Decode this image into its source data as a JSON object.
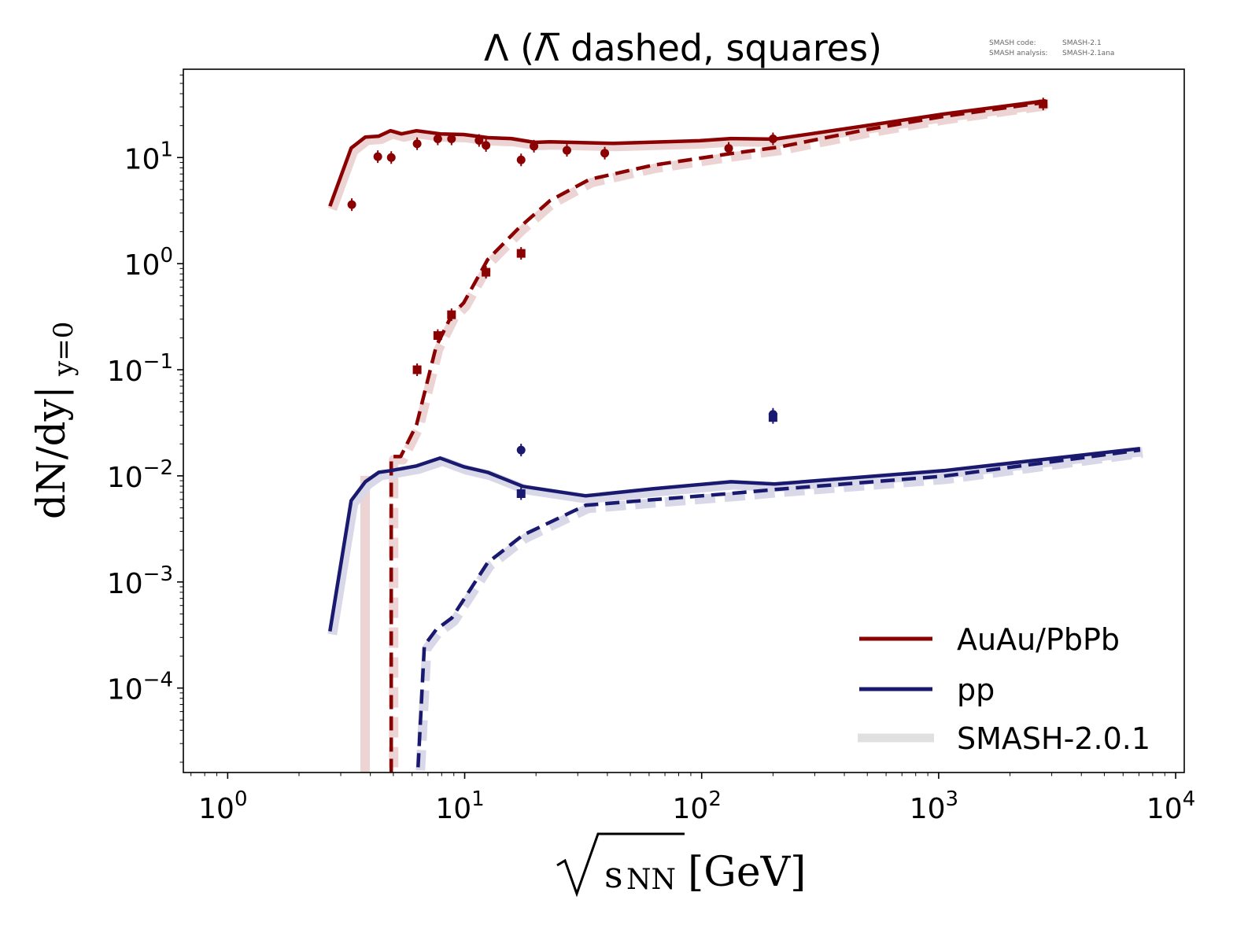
{
  "chart_data": {
    "type": "line",
    "title": "Λ (Λ̅ dashed, squares)",
    "annotation": {
      "code_label": "SMASH code:",
      "code_value": "SMASH-2.1",
      "analysis_label": "SMASH analysis:",
      "analysis_value": "SMASH-2.1ana"
    },
    "xlabel": "√sNN [GeV]",
    "xlabel_parts": {
      "sqrt": "√",
      "s": "s",
      "sub": "NN",
      "unit": "[GeV]"
    },
    "ylabel": "dN/dy|y=0",
    "ylabel_parts": {
      "main": "dN/dy|",
      "sub": "y=0"
    },
    "xscale": "log",
    "yscale": "log",
    "xlim": [
      0.65,
      10870
    ],
    "ylim": [
      1.6e-05,
      68
    ],
    "x_ticks": [
      {
        "base": "10",
        "exp": "0",
        "value": 1
      },
      {
        "base": "10",
        "exp": "1",
        "value": 10
      },
      {
        "base": "10",
        "exp": "2",
        "value": 100
      },
      {
        "base": "10",
        "exp": "3",
        "value": 1000
      },
      {
        "base": "10",
        "exp": "4",
        "value": 10000
      }
    ],
    "y_ticks": [
      {
        "base": "10",
        "exp": "1",
        "value": 10
      },
      {
        "base": "10",
        "exp": "0",
        "value": 1
      },
      {
        "base": "10",
        "exp": "−1",
        "value": 0.1
      },
      {
        "base": "10",
        "exp": "−2",
        "value": 0.01
      },
      {
        "base": "10",
        "exp": "−3",
        "value": 0.001
      },
      {
        "base": "10",
        "exp": "−4",
        "value": 0.0001
      }
    ],
    "grid": false,
    "legend_position": "bottom-right",
    "legend": [
      {
        "label": "AuAu/PbPb",
        "color": "#8b0000",
        "style": "solid"
      },
      {
        "label": "pp",
        "color": "#191970",
        "style": "solid"
      },
      {
        "label": "SMASH-2.0.1",
        "color": "#e0e0e0",
        "style": "band"
      }
    ],
    "series": [
      {
        "name": "AuAu Lambda (SMASH-2.1)",
        "color": "#8b0000",
        "dash": false,
        "x": [
          2.7,
          3.32,
          3.81,
          4.34,
          4.86,
          5.41,
          6.26,
          7.88,
          9.9,
          12.5,
          15.7,
          19.7,
          22.9,
          42.3,
          98,
          133,
          203,
          488,
          1047,
          2830
        ],
        "y": [
          3.48,
          12.3,
          15.6,
          15.9,
          17.9,
          16.7,
          17.9,
          16.7,
          16.5,
          15.4,
          15.1,
          13.9,
          14.1,
          13.6,
          14.4,
          15.1,
          14.9,
          19.9,
          25.7,
          34.3
        ]
      },
      {
        "name": "AuAu anti-Lambda (SMASH-2.1)",
        "color": "#8b0000",
        "dash": true,
        "x": [
          4.9,
          4.9,
          5.37,
          6.26,
          7.58,
          7.88,
          8.83,
          9.9,
          12.5,
          16.9,
          22.9,
          33.6,
          62,
          133,
          210,
          488,
          1047,
          2830
        ],
        "y": [
          1e-05,
          0.0152,
          0.0152,
          0.0302,
          0.166,
          0.197,
          0.33,
          0.426,
          1.09,
          2.16,
          3.92,
          6.22,
          8.46,
          10.9,
          12.5,
          18.2,
          24.4,
          33.2
        ]
      },
      {
        "name": "pp Lambda (SMASH-2.1)",
        "color": "#191970",
        "dash": false,
        "x": [
          2.7,
          3.32,
          3.81,
          4.34,
          4.86,
          6.26,
          7.88,
          9.9,
          12.5,
          17.6,
          32.4,
          62,
          133,
          203,
          1047,
          7080
        ],
        "y": [
          0.000343,
          0.00585,
          0.0088,
          0.0108,
          0.0112,
          0.0124,
          0.0147,
          0.0122,
          0.0108,
          0.00796,
          0.00648,
          0.00755,
          0.0088,
          0.00837,
          0.0112,
          0.0181
        ]
      },
      {
        "name": "pp anti-Lambda (SMASH-2.1)",
        "color": "#191970",
        "dash": true,
        "x": [
          6.36,
          6.76,
          7.58,
          8.83,
          12.5,
          17.6,
          32.4,
          62,
          133,
          203,
          1047,
          7080
        ],
        "y": [
          1.79e-05,
          0.000252,
          0.000355,
          0.000459,
          0.00152,
          0.00276,
          0.00528,
          0.00595,
          0.00682,
          0.00743,
          0.00993,
          0.0175
        ]
      }
    ],
    "reference_bands": [
      {
        "name": "SMASH-2.0.1 AuAu Lambda",
        "color": "#ecd4d4",
        "ref": 0
      },
      {
        "name": "SMASH-2.0.1 AuAu anti-Lambda",
        "color": "#ecd4d4",
        "ref": 1,
        "extra_x": [
          3.8,
          3.8
        ],
        "extra_y": [
          1e-05,
          0.01
        ]
      },
      {
        "name": "SMASH-2.0.1 pp Lambda",
        "color": "#d8d8e8",
        "ref": 2
      },
      {
        "name": "SMASH-2.0.1 pp anti-Lambda",
        "color": "#d8d8e8",
        "ref": 3
      }
    ],
    "points": [
      {
        "name": "AuAu Lambda data",
        "marker": "circle",
        "color": "#8b0000",
        "x": [
          3.34,
          4.3,
          4.9,
          6.3,
          7.7,
          8.8,
          11.5,
          12.3,
          17.3,
          19.6,
          27,
          39,
          130,
          200
        ],
        "y": [
          3.6,
          10.2,
          10.0,
          13.5,
          15.0,
          15.0,
          14.5,
          13.0,
          9.5,
          12.8,
          11.7,
          11.0,
          12.2,
          15.0
        ]
      },
      {
        "name": "AuAu anti-Lambda data",
        "marker": "square",
        "color": "#8b0000",
        "x": [
          6.3,
          7.7,
          8.8,
          12.3,
          17.3,
          2760
        ],
        "y": [
          0.1,
          0.21,
          0.33,
          0.83,
          1.25,
          32
        ]
      },
      {
        "name": "pp Lambda data",
        "marker": "circle",
        "color": "#191970",
        "x": [
          17.3,
          200
        ],
        "y": [
          0.0175,
          0.038
        ]
      },
      {
        "name": "pp anti-Lambda data",
        "marker": "square",
        "color": "#191970",
        "x": [
          17.3,
          200
        ],
        "y": [
          0.0068,
          0.0355
        ]
      }
    ]
  }
}
